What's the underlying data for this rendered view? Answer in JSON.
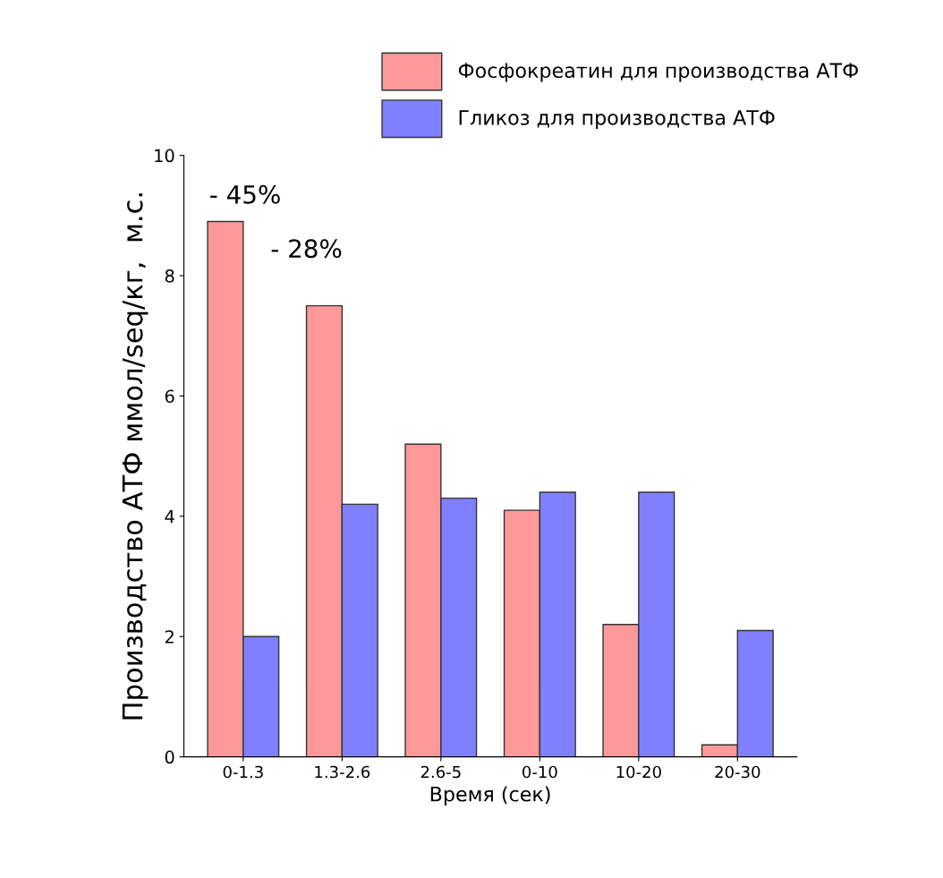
{
  "chart_data": {
    "type": "bar",
    "xlabel": "Время (сек)",
    "ylabel": "Производство АТФ ммол/seq/кг,  м.с.",
    "categories": [
      "0-1.3",
      "1.3-2.6",
      "2.6-5",
      "0-10",
      "10-20",
      "20-30"
    ],
    "series": [
      {
        "name": "Фосфокреатин для производства АТФ",
        "color": "#ff9999",
        "values": [
          8.9,
          7.5,
          5.2,
          4.1,
          2.2,
          0.2
        ]
      },
      {
        "name": "Гликоз для производства АТФ",
        "color": "#8080ff",
        "values": [
          2.0,
          4.2,
          4.3,
          4.4,
          4.4,
          2.1
        ]
      }
    ],
    "ylim": [
      0,
      10
    ],
    "yticks": [
      0,
      2,
      4,
      6,
      8,
      10
    ],
    "grid": false,
    "legend": "top right",
    "annotations": [
      "- 45%",
      "- 28%"
    ]
  }
}
